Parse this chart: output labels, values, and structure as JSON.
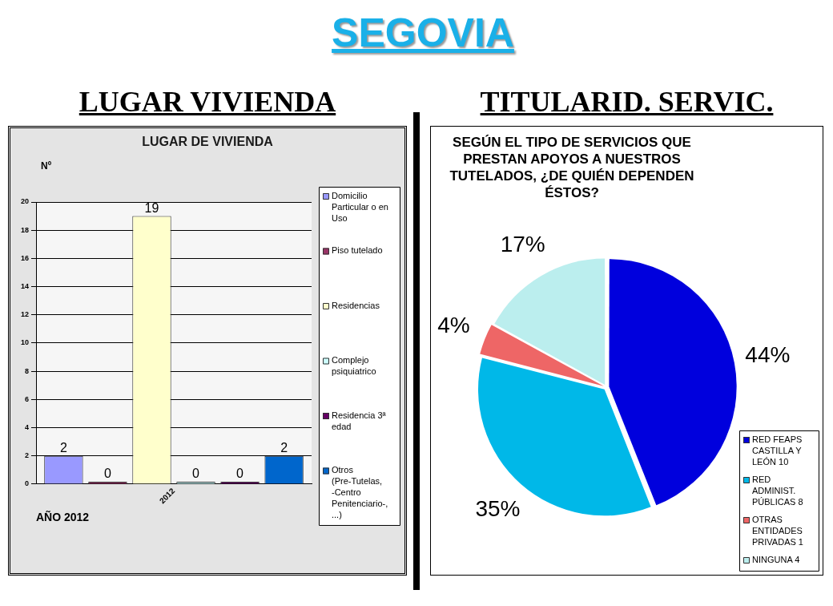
{
  "chart_data": [
    {
      "type": "other",
      "title": "SEGOVIA"
    },
    {
      "type": "bar",
      "title": "LUGAR VIVIENDA",
      "subtitle": "LUGAR DE VIVIENDA",
      "xlabel": "AÑO 2012",
      "ylabel": "Nº",
      "categories": [
        "2012"
      ],
      "series": [
        {
          "name": "Domicilio Particular o en Uso",
          "color": "#9999ff",
          "values": [
            2
          ]
        },
        {
          "name": "Piso tutelado",
          "color": "#993366",
          "values": [
            0
          ]
        },
        {
          "name": "Residencias",
          "color": "#ffffcc",
          "values": [
            19
          ]
        },
        {
          "name": "Complejo psiquiatrico",
          "color": "#ccffff",
          "values": [
            0
          ]
        },
        {
          "name": "Residencia 3ª edad",
          "color": "#660066",
          "values": [
            0
          ]
        },
        {
          "name": "Otros (Pre-Tutelas, -Centro Penitenciario-, ...)",
          "color": "#0066cc",
          "values": [
            2
          ]
        }
      ],
      "ylim": [
        0,
        20
      ],
      "yticks": [
        0,
        2,
        4,
        6,
        8,
        10,
        12,
        14,
        16,
        18,
        20
      ],
      "grid": "y",
      "legend": "right",
      "data_labels": true
    },
    {
      "type": "pie",
      "title": "TITULARID. SERVIC.",
      "subtitle": "SEGÚN EL TIPO DE SERVICIOS QUE PRESTAN APOYOS A NUESTROS TUTELADOS, ¿DE QUIÉN DEPENDEN ÉSTOS?",
      "categories": [
        "RED FEAPS CASTILLA Y LEÓN 10",
        "RED ADMINIST. PÚBLICAS 8",
        "OTRAS ENTIDADES PRIVADAS 1",
        "NINGUNA 4"
      ],
      "values": [
        44,
        35,
        4,
        17
      ],
      "colors": [
        "#0000dd",
        "#00b8e8",
        "#ee6666",
        "#bbeeee"
      ],
      "value_labels": [
        "44%",
        "35%",
        "4%",
        "17%"
      ],
      "legend": "bottom right"
    }
  ]
}
